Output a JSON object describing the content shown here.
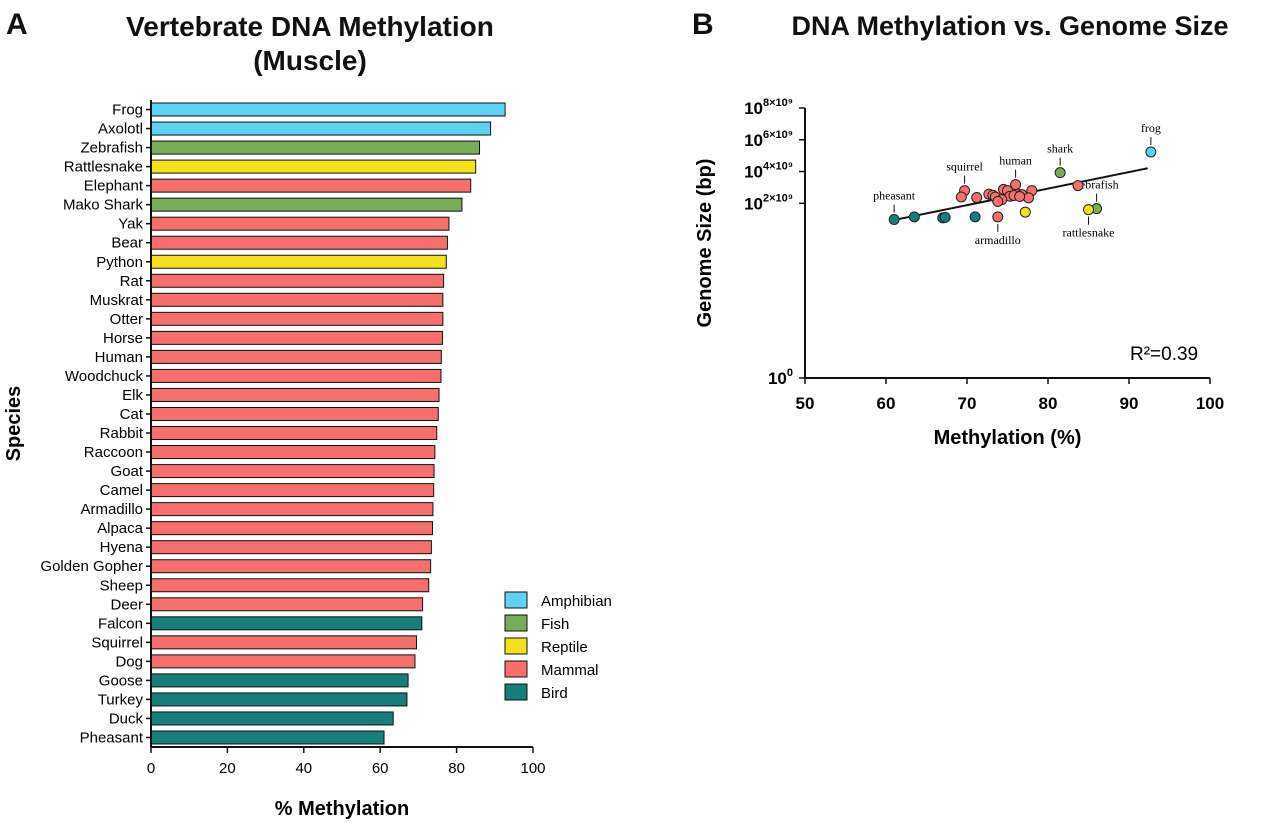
{
  "panel_a_letter": "A",
  "panel_b_letter": "B",
  "chart_data": [
    {
      "type": "bar",
      "orientation": "horizontal",
      "title": "Vertebrate DNA Methylation",
      "subtitle": "(Muscle)",
      "xlabel": "% Methylation",
      "ylabel": "Species",
      "xlim": [
        0,
        100
      ],
      "xticks": [
        "0",
        "20",
        "40",
        "60",
        "80",
        "100"
      ],
      "categories": [
        "Frog",
        "Axolotl",
        "Zebrafish",
        "Rattlesnake",
        "Elephant",
        "Mako Shark",
        "Yak",
        "Bear",
        "Python",
        "Rat",
        "Muskrat",
        "Otter",
        "Horse",
        "Human",
        "Woodchuck",
        "Elk",
        "Cat",
        "Rabbit",
        "Raccoon",
        "Goat",
        "Camel",
        "Armadillo",
        "Alpaca",
        "Hyena",
        "Golden Gopher",
        "Sheep",
        "Deer",
        "Falcon",
        "Squirrel",
        "Dog",
        "Goose",
        "Turkey",
        "Duck",
        "Pheasant"
      ],
      "values": [
        92.7,
        88.9,
        86.0,
        85.0,
        83.7,
        81.4,
        78.0,
        77.6,
        77.3,
        76.6,
        76.4,
        76.4,
        76.3,
        76.0,
        75.9,
        75.4,
        75.2,
        74.8,
        74.3,
        74.1,
        74.0,
        73.8,
        73.7,
        73.4,
        73.2,
        72.7,
        71.1,
        70.9,
        69.5,
        69.1,
        67.3,
        67.0,
        63.4,
        61.0
      ],
      "groups": [
        "Amphibian",
        "Amphibian",
        "Fish",
        "Reptile",
        "Mammal",
        "Fish",
        "Mammal",
        "Mammal",
        "Reptile",
        "Mammal",
        "Mammal",
        "Mammal",
        "Mammal",
        "Mammal",
        "Mammal",
        "Mammal",
        "Mammal",
        "Mammal",
        "Mammal",
        "Mammal",
        "Mammal",
        "Mammal",
        "Mammal",
        "Mammal",
        "Mammal",
        "Mammal",
        "Mammal",
        "Bird",
        "Mammal",
        "Mammal",
        "Bird",
        "Bird",
        "Bird",
        "Bird"
      ],
      "legend": {
        "placement": "bottom-right",
        "items": [
          {
            "name": "Amphibian",
            "color": "#5ed2f2"
          },
          {
            "name": "Fish",
            "color": "#77ad59"
          },
          {
            "name": "Reptile",
            "color": "#f4e01b"
          },
          {
            "name": "Mammal",
            "color": "#f5706c"
          },
          {
            "name": "Bird",
            "color": "#167f7c"
          }
        ]
      },
      "grid": false
    },
    {
      "type": "scatter",
      "title": "DNA Methylation vs. Genome Size",
      "xlabel": "Methylation (%)",
      "ylabel": "Genome Size (bp)",
      "xlim": [
        50,
        100
      ],
      "xticks": [
        "50",
        "60",
        "70",
        "80",
        "90",
        "100"
      ],
      "yscale": "log",
      "yticks": [
        {
          "value": 1,
          "base": "10",
          "exp": "0"
        },
        {
          "value": 100000000000,
          "base": "10",
          "exp": "2×10⁹"
        },
        {
          "value": 10000000000000,
          "base": "10",
          "exp": "4×10⁹"
        },
        {
          "value": 1000000000000000,
          "base": "10",
          "exp": "6×10⁹"
        },
        {
          "value": 100000000000000000,
          "base": "10",
          "exp": "8×10⁹"
        }
      ],
      "annotation": "R²=0.39",
      "regression": {
        "x": [
          61.5,
          92.3
        ],
        "y": [
          10000000000,
          16000000000000
        ]
      },
      "points": [
        {
          "x": 92.7,
          "y": 170000000000000,
          "group": "Amphibian",
          "label": "frog"
        },
        {
          "x": 81.5,
          "y": 8500000000000,
          "group": "Fish",
          "label": "shark"
        },
        {
          "x": 86.0,
          "y": 46000000000,
          "group": "Fish",
          "label": "zebrafish"
        },
        {
          "x": 85.0,
          "y": 40000000000,
          "group": "Reptile",
          "label": "rattlesnake"
        },
        {
          "x": 77.2,
          "y": 28000000000,
          "group": "Reptile",
          "label": ""
        },
        {
          "x": 76.0,
          "y": 1500000000000,
          "group": "Mammal",
          "label": "human"
        },
        {
          "x": 69.7,
          "y": 630000000000,
          "group": "Mammal",
          "label": "squirrel"
        },
        {
          "x": 73.8,
          "y": 14000000000,
          "group": "Mammal",
          "label": "armadillo"
        },
        {
          "x": 83.7,
          "y": 1300000000000,
          "group": "Mammal",
          "label": ""
        },
        {
          "x": 78.0,
          "y": 630000000000,
          "group": "Mammal",
          "label": ""
        },
        {
          "x": 74.5,
          "y": 750000000000,
          "group": "Mammal",
          "label": ""
        },
        {
          "x": 75.0,
          "y": 630000000000,
          "group": "Mammal",
          "label": ""
        },
        {
          "x": 76.3,
          "y": 380000000000,
          "group": "Mammal",
          "label": ""
        },
        {
          "x": 76.8,
          "y": 350000000000,
          "group": "Mammal",
          "label": ""
        },
        {
          "x": 72.7,
          "y": 380000000000,
          "group": "Mammal",
          "label": ""
        },
        {
          "x": 73.2,
          "y": 320000000000,
          "group": "Mammal",
          "label": ""
        },
        {
          "x": 73.5,
          "y": 250000000000,
          "group": "Mammal",
          "label": ""
        },
        {
          "x": 75.3,
          "y": 280000000000,
          "group": "Mammal",
          "label": ""
        },
        {
          "x": 75.8,
          "y": 310000000000,
          "group": "Mammal",
          "label": ""
        },
        {
          "x": 77.6,
          "y": 220000000000,
          "group": "Mammal",
          "label": ""
        },
        {
          "x": 69.3,
          "y": 250000000000,
          "group": "Mammal",
          "label": ""
        },
        {
          "x": 71.2,
          "y": 230000000000,
          "group": "Mammal",
          "label": ""
        },
        {
          "x": 74.3,
          "y": 170000000000,
          "group": "Mammal",
          "label": ""
        },
        {
          "x": 73.8,
          "y": 130000000000,
          "group": "Mammal",
          "label": ""
        },
        {
          "x": 76.5,
          "y": 270000000000,
          "group": "Mammal",
          "label": ""
        },
        {
          "x": 61.0,
          "y": 9500000000,
          "group": "Bird",
          "label": "pheasant"
        },
        {
          "x": 63.5,
          "y": 14000000000,
          "group": "Bird",
          "label": ""
        },
        {
          "x": 67.0,
          "y": 12000000000,
          "group": "Bird",
          "label": ""
        },
        {
          "x": 67.3,
          "y": 13000000000,
          "group": "Bird",
          "label": ""
        },
        {
          "x": 71.0,
          "y": 14000000000,
          "group": "Bird",
          "label": ""
        }
      ],
      "grid": false
    }
  ]
}
